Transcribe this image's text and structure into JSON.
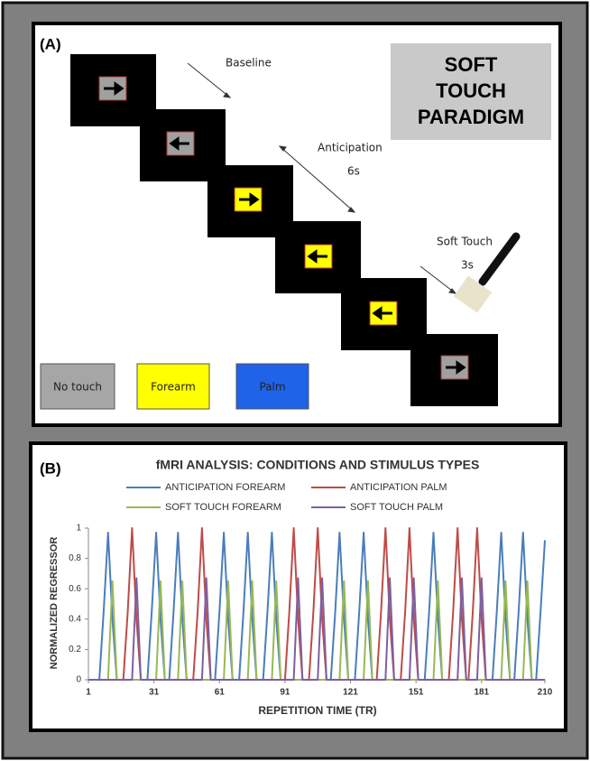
{
  "panel_a": {
    "label": "(A)",
    "title_lines": [
      "SOFT",
      "TOUCH",
      "PARADIGM"
    ],
    "baseline": "Baseline",
    "anticipation": "Anticipation",
    "anticipation_duration": "6s",
    "soft_touch": "Soft Touch",
    "soft_touch_duration": "3s",
    "legend": [
      "No touch",
      "Forearm",
      "Palm"
    ]
  },
  "chart_data": {
    "type": "line",
    "panel_label": "(B)",
    "title": "fMRI ANALYSIS: CONDITIONS AND STIMULUS TYPES",
    "x_label": "REPETITION TIME (TR)",
    "y_label": "NORMALIZED REGRESSOR",
    "xlim": [
      1,
      210
    ],
    "xticks": [
      1,
      31,
      61,
      91,
      121,
      151,
      181,
      210
    ],
    "ylim": [
      0,
      1
    ],
    "yticks": [
      0,
      0.2,
      0.4,
      0.6,
      0.8,
      1
    ],
    "series": [
      {
        "name": "ANTICIPATION FOREARM",
        "color": "#4a7ebb",
        "x": [
          1,
          6,
          8,
          10,
          12,
          14,
          28,
          30,
          32,
          34,
          36,
          38,
          40,
          42,
          44,
          46,
          59,
          61,
          63,
          65,
          67,
          70,
          72,
          74,
          76,
          78,
          81,
          83,
          85,
          87,
          89,
          112,
          114,
          116,
          118,
          120,
          123,
          125,
          127,
          129,
          131,
          155,
          157,
          159,
          161,
          163,
          186,
          188,
          190,
          192,
          194,
          196,
          198,
          200,
          202,
          204,
          206,
          208,
          210
        ],
        "values": [
          0,
          0,
          0.45,
          0.97,
          0.4,
          0,
          0,
          0.45,
          0.97,
          0.4,
          0,
          0,
          0.45,
          0.97,
          0.4,
          0,
          0,
          0.45,
          0.97,
          0.4,
          0,
          0,
          0.45,
          0.97,
          0.4,
          0,
          0,
          0.45,
          0.97,
          0.4,
          0,
          0,
          0.45,
          0.97,
          0.4,
          0,
          0,
          0.45,
          0.97,
          0.4,
          0,
          0,
          0.45,
          0.97,
          0.4,
          0,
          0,
          0.45,
          0.97,
          0.4,
          0,
          0,
          0.45,
          0.97,
          0.4,
          0,
          0,
          0.45,
          0.92
        ]
      },
      {
        "name": "ANTICIPATION PALM",
        "color": "#be4b48",
        "x": [
          1,
          17,
          19,
          21,
          23,
          25,
          49,
          51,
          53,
          55,
          57,
          91,
          93,
          95,
          97,
          99,
          102,
          104,
          106,
          108,
          110,
          133,
          135,
          137,
          139,
          141,
          144,
          146,
          148,
          150,
          152,
          166,
          168,
          170,
          172,
          174,
          175,
          177,
          179,
          181,
          183,
          210
        ],
        "values": [
          0,
          0,
          0.45,
          1,
          0.4,
          0,
          0,
          0.45,
          1,
          0.4,
          0,
          0,
          0.45,
          1,
          0.4,
          0,
          0,
          0.45,
          1,
          0.4,
          0,
          0,
          0.45,
          1,
          0.4,
          0,
          0,
          0.45,
          1,
          0.4,
          0,
          0,
          0.45,
          1,
          0.4,
          0,
          0,
          0.45,
          1,
          0.4,
          0,
          0
        ]
      },
      {
        "name": "SOFT TOUCH FOREARM",
        "color": "#98b954",
        "x": [
          1,
          10,
          12,
          14,
          32,
          34,
          36,
          42,
          44,
          46,
          63,
          65,
          67,
          74,
          76,
          78,
          85,
          87,
          89,
          116,
          118,
          120,
          127,
          129,
          131,
          159,
          161,
          163,
          190,
          192,
          194,
          200,
          202,
          204,
          210
        ],
        "values": [
          0,
          0,
          0.65,
          0,
          0,
          0.65,
          0,
          0,
          0.65,
          0,
          0,
          0.65,
          0,
          0,
          0.65,
          0,
          0,
          0.65,
          0,
          0,
          0.65,
          0,
          0,
          0.65,
          0,
          0,
          0.65,
          0,
          0,
          0.65,
          0,
          0,
          0.65,
          0,
          0
        ]
      },
      {
        "name": "SOFT TOUCH PALM",
        "color": "#7d60a0",
        "x": [
          1,
          21,
          23,
          25,
          53,
          55,
          57,
          95,
          97,
          99,
          106,
          108,
          110,
          137,
          139,
          141,
          148,
          150,
          152,
          170,
          172,
          174,
          179,
          181,
          183,
          210
        ],
        "values": [
          0,
          0,
          0.67,
          0,
          0,
          0.67,
          0,
          0,
          0.67,
          0,
          0,
          0.67,
          0,
          0,
          0.67,
          0,
          0,
          0.67,
          0,
          0,
          0.67,
          0,
          0,
          0.67,
          0,
          0
        ]
      }
    ]
  }
}
